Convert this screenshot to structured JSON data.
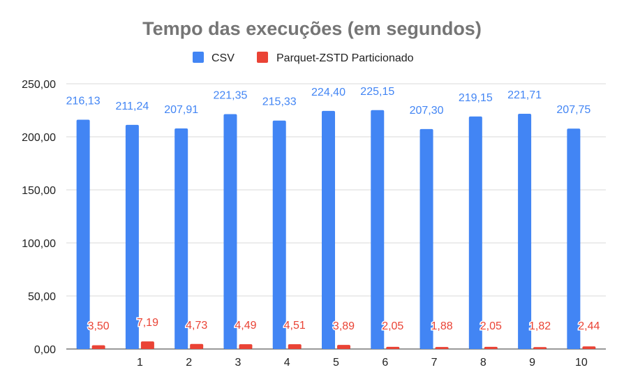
{
  "chart_data": {
    "type": "bar",
    "title": "Tempo das execuções (em segundos)",
    "xlabel": "",
    "ylabel": "",
    "categories": [
      "",
      "1",
      "2",
      "3",
      "4",
      "5",
      "6",
      "7",
      "8",
      "9",
      "10"
    ],
    "series": [
      {
        "name": "CSV",
        "color": "#4285f4",
        "values": [
          216.13,
          211.24,
          207.91,
          221.35,
          215.33,
          224.4,
          225.15,
          207.3,
          219.15,
          221.71,
          207.75
        ],
        "labels": [
          "216,13",
          "211,24",
          "207,91",
          "221,35",
          "215,33",
          "224,40",
          "225,15",
          "207,30",
          "219,15",
          "221,71",
          "207,75"
        ]
      },
      {
        "name": "Parquet-ZSTD Particionado",
        "color": "#ea4335",
        "values": [
          3.5,
          7.19,
          4.73,
          4.49,
          4.51,
          3.89,
          2.05,
          1.88,
          2.05,
          1.82,
          2.44
        ],
        "labels": [
          "3,50",
          "7,19",
          "4,73",
          "4,49",
          "4,51",
          "3,89",
          "2,05",
          "1,88",
          "2,05",
          "1,82",
          "2,44"
        ]
      }
    ],
    "ylim": [
      0,
      250
    ],
    "yticks": [
      "0,00",
      "50,00",
      "100,00",
      "150,00",
      "200,00",
      "250,00"
    ],
    "legend_position": "top-center",
    "grid": true
  }
}
